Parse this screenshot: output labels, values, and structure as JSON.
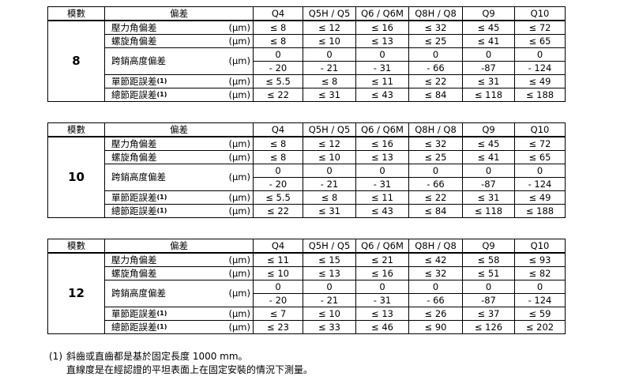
{
  "headers": {
    "module": "模數",
    "deviation": "偏差",
    "grades": [
      "Q4",
      "Q5H / Q5",
      "Q6 / Q6M",
      "Q8H / Q8",
      "Q9",
      "Q10"
    ]
  },
  "unit": "(µm)",
  "row_labels": [
    "壓力角偏差",
    "螺旋角偏差",
    "跨銷高度偏差",
    "單節距誤差",
    "總節距誤差"
  ],
  "footnote_mark": "(1)",
  "tables": [
    {
      "module": "8",
      "rows": [
        [
          "≤ 8",
          "≤ 12",
          "≤ 16",
          "≤ 32",
          "≤ 45",
          "≤ 72"
        ],
        [
          "≤ 8",
          "≤ 10",
          "≤ 13",
          "≤ 25",
          "≤ 41",
          "≤ 65"
        ],
        [
          "0",
          "0",
          "0",
          "0",
          "0",
          "0"
        ],
        [
          "- 20",
          "- 21",
          "- 31",
          "- 66",
          "-87",
          "- 124"
        ],
        [
          "≤ 5.5",
          "≤ 8",
          "≤ 11",
          "≤ 22",
          "≤ 31",
          "≤ 49"
        ],
        [
          "≤ 22",
          "≤ 31",
          "≤ 43",
          "≤ 84",
          "≤ 118",
          "≤ 188"
        ]
      ]
    },
    {
      "module": "10",
      "rows": [
        [
          "≤ 8",
          "≤ 12",
          "≤ 16",
          "≤ 32",
          "≤ 45",
          "≤ 72"
        ],
        [
          "≤ 8",
          "≤ 10",
          "≤ 13",
          "≤ 25",
          "≤ 41",
          "≤ 65"
        ],
        [
          "0",
          "0",
          "0",
          "0",
          "0",
          "0"
        ],
        [
          "- 20",
          "- 21",
          "- 31",
          "- 66",
          "-87",
          "- 124"
        ],
        [
          "≤ 5.5",
          "≤ 8",
          "≤ 11",
          "≤ 22",
          "≤ 31",
          "≤ 49"
        ],
        [
          "≤ 22",
          "≤ 31",
          "≤ 43",
          "≤ 84",
          "≤ 118",
          "≤ 188"
        ]
      ]
    },
    {
      "module": "12",
      "rows": [
        [
          "≤ 11",
          "≤ 15",
          "≤ 21",
          "≤ 42",
          "≤ 58",
          "≤ 93"
        ],
        [
          "≤ 10",
          "≤ 13",
          "≤ 16",
          "≤ 32",
          "≤ 51",
          "≤ 82"
        ],
        [
          "0",
          "0",
          "0",
          "0",
          "0",
          "0"
        ],
        [
          "- 20",
          "- 21",
          "- 31",
          "- 66",
          "-87",
          "- 124"
        ],
        [
          "≤ 7",
          "≤ 10",
          "≤ 13",
          "≤ 26",
          "≤ 37",
          "≤ 59"
        ],
        [
          "≤ 23",
          "≤ 33",
          "≤ 46",
          "≤ 90",
          "≤ 126",
          "≤ 202"
        ]
      ]
    }
  ],
  "footnote": {
    "mark": "(1)",
    "line1": "斜齒或直齒都是基於固定長度 1000 mm。",
    "line2": "直線度是在經認證的平坦表面上在固定安裝的情況下測量。"
  }
}
